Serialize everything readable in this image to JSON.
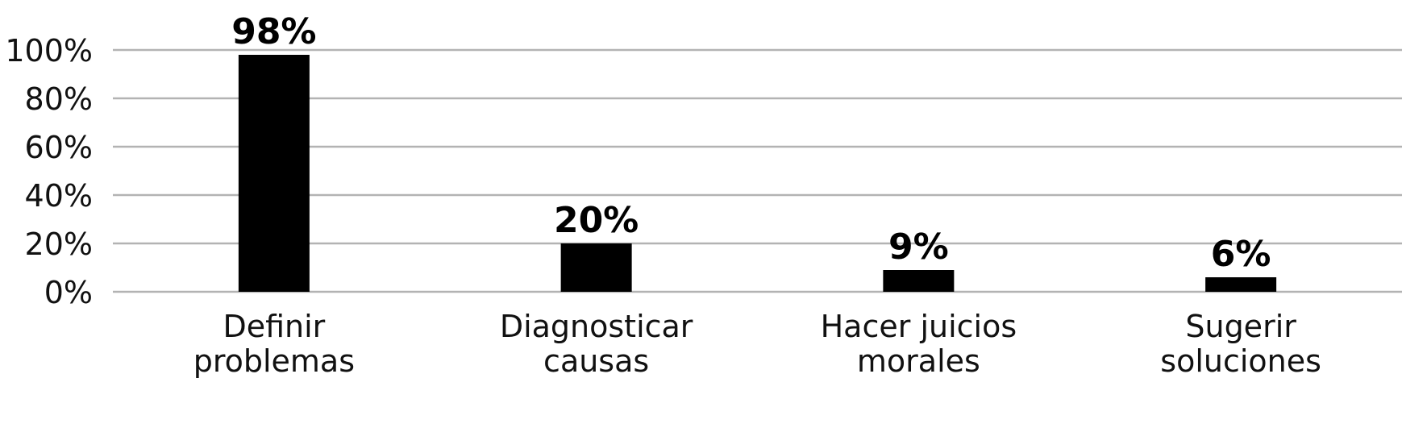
{
  "chart_data": {
    "type": "bar",
    "categories": [
      [
        "Definir",
        "problemas"
      ],
      [
        "Diagnosticar",
        "causas"
      ],
      [
        "Hacer juicios",
        "morales"
      ],
      [
        "Sugerir",
        "soluciones"
      ]
    ],
    "values": [
      98,
      20,
      9,
      6
    ],
    "data_labels": [
      "98%",
      "20%",
      "9%",
      "6%"
    ],
    "ylim": [
      0,
      100
    ],
    "yticks": [
      0,
      20,
      40,
      60,
      80,
      100
    ],
    "ytick_labels": [
      "0%",
      "20%",
      "40%",
      "60%",
      "80%",
      "100%"
    ],
    "title": "",
    "xlabel": "",
    "ylabel": "",
    "grid": true,
    "bar_color": "#000000",
    "grid_color": "#b3b3b3"
  }
}
